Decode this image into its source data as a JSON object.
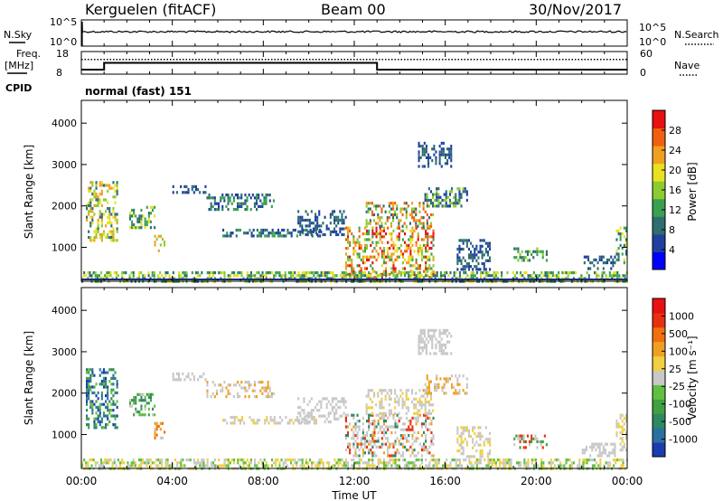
{
  "header": {
    "station": "Kerguelen (fitACF)",
    "beam": "Beam 00",
    "date": "30/Nov/2017"
  },
  "top_panel": {
    "left_label": "N.Sky",
    "left_ticks": [
      "10^5",
      "10^0"
    ],
    "right_ticks": [
      "10^5",
      "10^0"
    ],
    "right_label": "N.Search"
  },
  "freq_panel": {
    "left_label_line1": "Freq.",
    "left_label_line2": "[MHz]",
    "left_ticks": [
      "18",
      "8"
    ],
    "right_ticks": [
      "60",
      "0"
    ],
    "right_label": "Nave",
    "cpid_label": "CPID",
    "cpid_text": "normal (fast) 151"
  },
  "colorbars": {
    "power": {
      "label": "Power [dB]",
      "ticks": [
        "28",
        "24",
        "20",
        "16",
        "12",
        "8",
        "4"
      ],
      "colors": [
        "#0000ff",
        "#2040a0",
        "#2e6e70",
        "#3aa050",
        "#8ccc30",
        "#e8e020",
        "#f0a020",
        "#f06010",
        "#e81010"
      ]
    },
    "velocity": {
      "label": "Velocity [m s⁻¹]",
      "ticks": [
        "1000",
        "500",
        "100",
        "25",
        "-25",
        "-100",
        "-500",
        "-1000"
      ],
      "colors": [
        "#1a3cb0",
        "#2a70a0",
        "#2e8860",
        "#40a040",
        "#60c040",
        "#c8c8c8",
        "#f0d040",
        "#f0a020",
        "#f07010",
        "#e83010",
        "#e81010"
      ]
    }
  },
  "chart_data": [
    {
      "type": "line",
      "title": "N.Sky / N.Search",
      "x_range_hours": [
        0,
        24
      ],
      "series": [
        {
          "name": "N.Sky",
          "style": "solid",
          "level": 0.55
        },
        {
          "name": "N.Search",
          "style": "dotted",
          "level": 0.55
        }
      ]
    },
    {
      "type": "line",
      "title": "Freq. / Nave",
      "x": [
        0,
        1,
        1,
        13,
        13,
        24
      ],
      "series": [
        {
          "name": "Freq.",
          "style": "solid",
          "unit": "MHz",
          "values": [
            10,
            10,
            13,
            13,
            10,
            10
          ],
          "ylim": [
            8,
            18
          ]
        },
        {
          "name": "Nave",
          "style": "dotted",
          "values": [
            39,
            39,
            39,
            39,
            39,
            39
          ],
          "ylim": [
            0,
            60
          ]
        }
      ]
    },
    {
      "type": "heatmap",
      "title": "Power [dB]",
      "xlabel": "",
      "ylabel": "Slant Range [km]",
      "yticks": [
        "1000",
        "2000",
        "3000",
        "4000"
      ],
      "ylim": [
        180,
        4550
      ],
      "xlim": [
        0,
        24
      ],
      "colorbar": "power",
      "regions": [
        {
          "t": [
            0.2,
            1.6
          ],
          "r": [
            1200,
            2600
          ],
          "c": [
            2,
            4,
            5,
            6
          ]
        },
        {
          "t": [
            2.1,
            3.2
          ],
          "r": [
            1500,
            2000
          ],
          "c": [
            2,
            3,
            5
          ]
        },
        {
          "t": [
            3.2,
            3.7
          ],
          "r": [
            950,
            1300
          ],
          "c": [
            4,
            6
          ]
        },
        {
          "t": [
            4.0,
            5.5
          ],
          "r": [
            2350,
            2500
          ],
          "c": [
            1,
            2
          ]
        },
        {
          "t": [
            5.5,
            8.5
          ],
          "r": [
            1950,
            2300
          ],
          "c": [
            1,
            2,
            3
          ]
        },
        {
          "t": [
            6.2,
            10.5
          ],
          "r": [
            1250,
            1450
          ],
          "c": [
            1,
            2,
            3
          ]
        },
        {
          "t": [
            9.5,
            11.6
          ],
          "r": [
            1300,
            1900
          ],
          "c": [
            1,
            2
          ]
        },
        {
          "t": [
            11.6,
            15.5
          ],
          "r": [
            300,
            1500
          ],
          "c": [
            3,
            4,
            5,
            6,
            7,
            8
          ]
        },
        {
          "t": [
            12.5,
            15.5
          ],
          "r": [
            1500,
            2100
          ],
          "c": [
            2,
            4,
            6,
            7
          ]
        },
        {
          "t": [
            15.0,
            17.0
          ],
          "r": [
            2000,
            2450
          ],
          "c": [
            1,
            2,
            4
          ]
        },
        {
          "t": [
            14.8,
            16.3
          ],
          "r": [
            2950,
            3550
          ],
          "c": [
            1,
            2
          ]
        },
        {
          "t": [
            16.5,
            18.0
          ],
          "r": [
            500,
            1200
          ],
          "c": [
            1,
            2
          ]
        },
        {
          "t": [
            19.0,
            20.5
          ],
          "r": [
            700,
            1000
          ],
          "c": [
            2,
            3,
            4
          ]
        },
        {
          "t": [
            22.0,
            23.5
          ],
          "r": [
            500,
            800
          ],
          "c": [
            1,
            2
          ]
        },
        {
          "t": [
            23.5,
            24.0
          ],
          "r": [
            600,
            1500
          ],
          "c": [
            2,
            3,
            5
          ]
        },
        {
          "t": [
            0.0,
            24.0
          ],
          "r": [
            180,
            420
          ],
          "c": [
            2,
            3,
            4,
            5
          ]
        }
      ]
    },
    {
      "type": "heatmap",
      "title": "Velocity [m s⁻¹]",
      "xlabel": "Time UT",
      "ylabel": "Slant Range [km]",
      "yticks": [
        "1000",
        "2000",
        "3000",
        "4000"
      ],
      "xticks": [
        "00:00",
        "04:00",
        "08:00",
        "12:00",
        "16:00",
        "20:00",
        "00:00"
      ],
      "ylim": [
        180,
        4550
      ],
      "xlim": [
        0,
        24
      ],
      "colorbar": "velocity",
      "regions": [
        {
          "t": [
            0.2,
            1.6
          ],
          "r": [
            1200,
            2600
          ],
          "c": [
            0,
            1,
            2,
            3,
            4
          ]
        },
        {
          "t": [
            2.1,
            3.2
          ],
          "r": [
            1500,
            2000
          ],
          "c": [
            2,
            3,
            4,
            5
          ]
        },
        {
          "t": [
            3.2,
            3.7
          ],
          "r": [
            950,
            1300
          ],
          "c": [
            5,
            7,
            8
          ]
        },
        {
          "t": [
            4.0,
            5.5
          ],
          "r": [
            2350,
            2500
          ],
          "c": [
            5
          ]
        },
        {
          "t": [
            5.5,
            8.5
          ],
          "r": [
            1950,
            2300
          ],
          "c": [
            5,
            5,
            7
          ]
        },
        {
          "t": [
            6.2,
            10.5
          ],
          "r": [
            1250,
            1450
          ],
          "c": [
            5,
            5,
            6
          ]
        },
        {
          "t": [
            9.5,
            11.6
          ],
          "r": [
            1300,
            1900
          ],
          "c": [
            5
          ]
        },
        {
          "t": [
            11.6,
            15.5
          ],
          "r": [
            500,
            1500
          ],
          "c": [
            5,
            5,
            5,
            7,
            9,
            2
          ]
        },
        {
          "t": [
            12.5,
            15.5
          ],
          "r": [
            1500,
            2100
          ],
          "c": [
            5,
            5,
            6
          ]
        },
        {
          "t": [
            15.0,
            17.0
          ],
          "r": [
            2000,
            2450
          ],
          "c": [
            5,
            7
          ]
        },
        {
          "t": [
            14.8,
            16.3
          ],
          "r": [
            2950,
            3550
          ],
          "c": [
            5
          ]
        },
        {
          "t": [
            16.5,
            18.0
          ],
          "r": [
            500,
            1200
          ],
          "c": [
            5,
            6
          ]
        },
        {
          "t": [
            19.0,
            20.5
          ],
          "r": [
            700,
            1000
          ],
          "c": [
            3,
            5,
            9
          ]
        },
        {
          "t": [
            22.0,
            23.5
          ],
          "r": [
            500,
            800
          ],
          "c": [
            5
          ]
        },
        {
          "t": [
            23.5,
            24.0
          ],
          "r": [
            600,
            1500
          ],
          "c": [
            5,
            6
          ]
        },
        {
          "t": [
            0.0,
            24.0
          ],
          "r": [
            180,
            420
          ],
          "c": [
            4,
            5,
            6
          ]
        }
      ]
    }
  ]
}
